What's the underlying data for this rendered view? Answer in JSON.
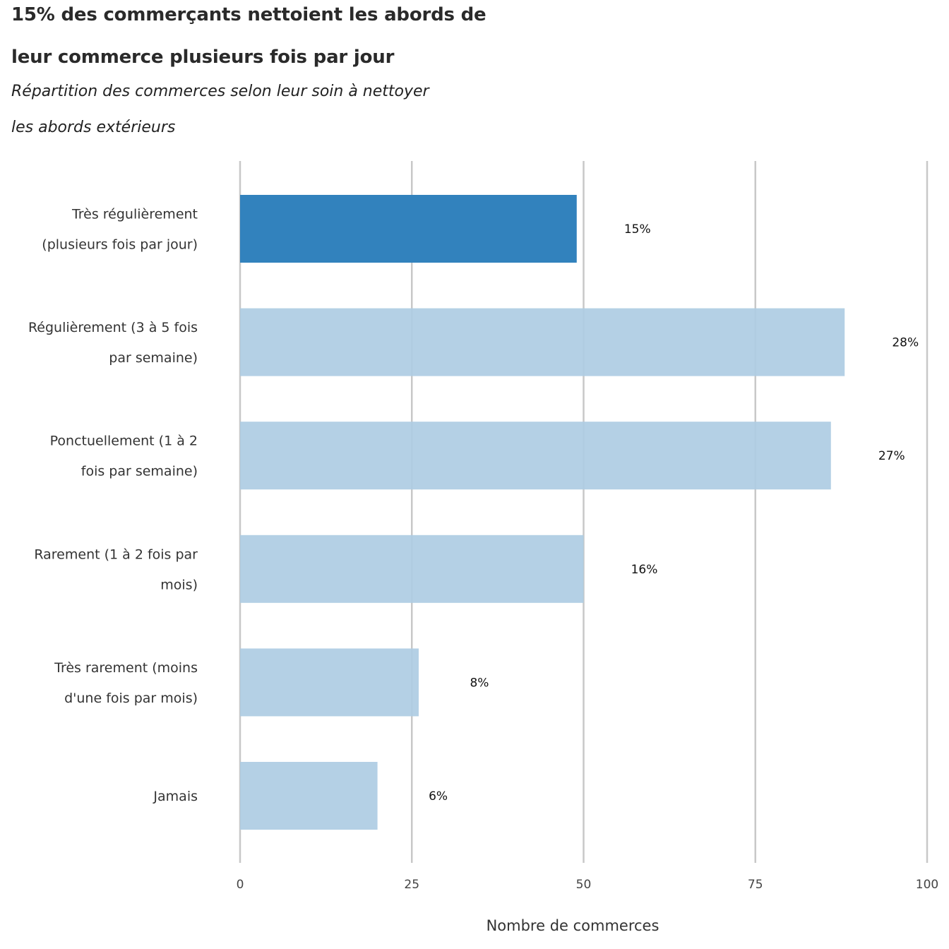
{
  "header": {
    "title_lines": [
      "15% des commerçants nettoient les abords de",
      "leur commerce plusieurs fois par jour"
    ],
    "subtitle_lines": [
      "Répartition des commerces selon leur soin à nettoyer",
      "les abords extérieurs"
    ]
  },
  "chart_data": {
    "type": "bar",
    "orientation": "horizontal",
    "categories": [
      [
        "Très régulièrement",
        "(plusieurs fois par jour)"
      ],
      [
        "Régulièrement (3 à 5 fois",
        "par semaine)"
      ],
      [
        "Ponctuellement (1 à 2",
        "fois par semaine)"
      ],
      [
        "Rarement (1 à 2 fois par",
        "mois)"
      ],
      [
        "Très rarement (moins",
        "d'une fois par mois)"
      ],
      [
        "Jamais"
      ]
    ],
    "values": [
      49,
      88,
      86,
      50,
      26,
      20
    ],
    "data_labels": [
      "15%",
      "28%",
      "27%",
      "16%",
      "8%",
      "6%"
    ],
    "highlight_index": 0,
    "xlabel": "Nombre de commerces",
    "ylabel": "",
    "xlim": [
      0,
      100
    ],
    "xticks": [
      0,
      25,
      50,
      75,
      100
    ],
    "grid": "vertical",
    "colors": {
      "highlight": "#3282bd",
      "default": "#aecce3",
      "grid": "#c8c8c8"
    }
  }
}
